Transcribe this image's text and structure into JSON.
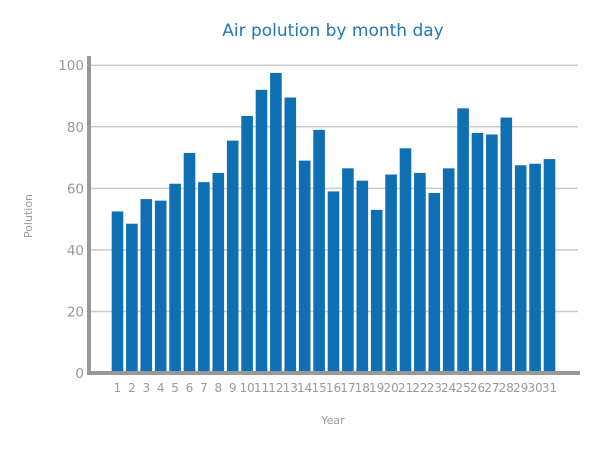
{
  "chart_data": {
    "type": "bar",
    "title": "Air polution by month day",
    "xlabel": "Year",
    "ylabel": "Polution",
    "categories": [
      "1",
      "2",
      "3",
      "4",
      "5",
      "6",
      "7",
      "8",
      "9",
      "10",
      "11",
      "12",
      "13",
      "14",
      "15",
      "16",
      "17",
      "18",
      "19",
      "20",
      "21",
      "22",
      "23",
      "24",
      "25",
      "26",
      "27",
      "28",
      "29",
      "30",
      "31"
    ],
    "values": [
      52.5,
      48.5,
      56.5,
      56,
      61.5,
      71.5,
      62,
      65,
      75.5,
      83.5,
      92,
      97.5,
      89.5,
      69,
      79,
      59,
      66.5,
      62.5,
      53,
      64.5,
      73,
      65,
      58.5,
      66.5,
      86,
      78,
      77.5,
      83,
      67.5,
      68,
      69.5
    ],
    "ylim": [
      0,
      103
    ],
    "yticks": [
      0,
      20,
      40,
      60,
      80,
      100
    ],
    "grid": true,
    "colors": {
      "bar": "#0f6fb3",
      "title": "#1f77b4",
      "grid": "#cccccc",
      "axis": "#999999",
      "text": "#999999"
    }
  }
}
